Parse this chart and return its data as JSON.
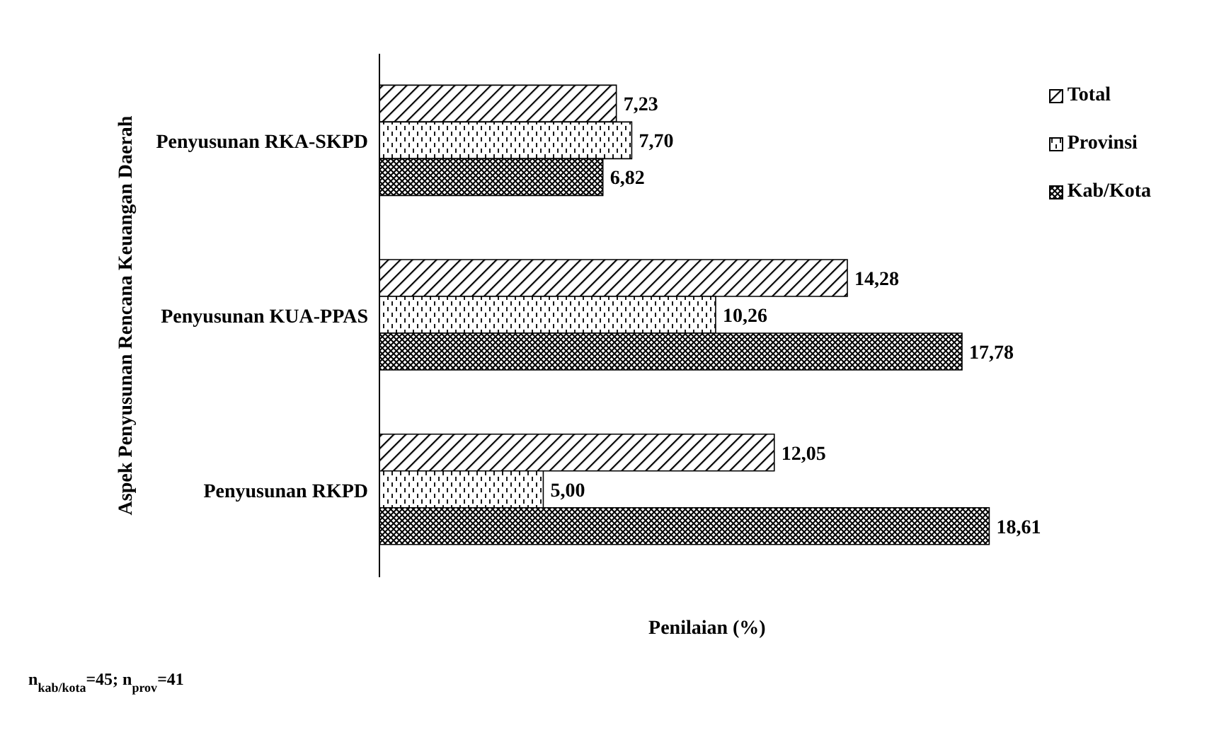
{
  "chart_data": {
    "type": "bar",
    "orientation": "horizontal",
    "ylabel": "Aspek Penyusunan Rencana Keuangan Daerah",
    "xlabel": "Penilaian (%)",
    "categories": [
      "Penyusunan RKA-SKPD",
      "Penyusunan KUA-PPAS",
      "Penyusunan RKPD"
    ],
    "series": [
      {
        "name": "Total",
        "color": "#000000",
        "values": [
          7.23,
          14.28,
          12.05
        ],
        "value_labels": [
          "7,23",
          "14,28",
          "12,05"
        ]
      },
      {
        "name": "Provinsi",
        "color": "#000000",
        "values": [
          7.7,
          10.26,
          5.0
        ],
        "value_labels": [
          "7,70",
          "10,26",
          "5,00"
        ]
      },
      {
        "name": "Kab/Kota",
        "color": "#000000",
        "values": [
          6.82,
          17.78,
          18.61
        ],
        "value_labels": [
          "6,82",
          "17,78",
          "18,61"
        ]
      }
    ],
    "tick_labels": "y",
    "grid": false,
    "legend": "top right",
    "annotations": [
      "n$_{kab/kota}$=45; n$_{prov}$=41"
    ]
  }
}
